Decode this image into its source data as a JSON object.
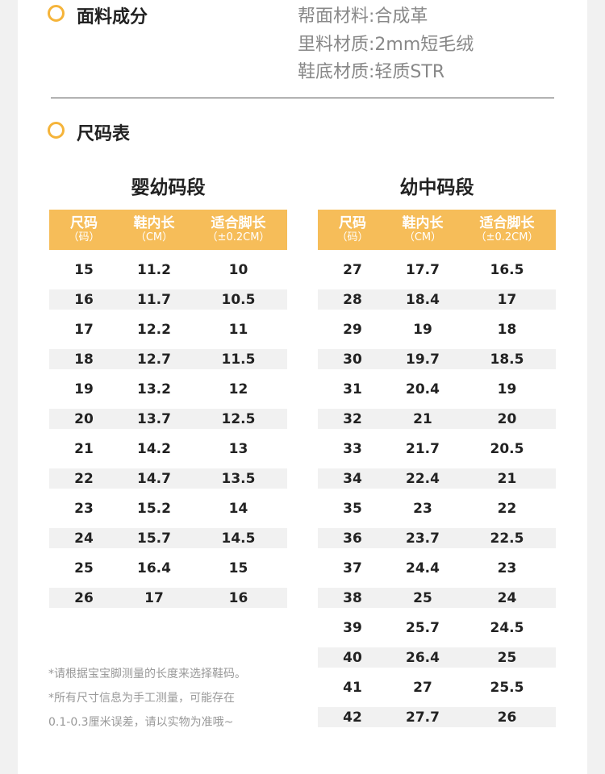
{
  "materials": {
    "heading": "面料成分",
    "lines": [
      "帮面材料:合成革",
      "里料材质:2mm短毛绒",
      "鞋底材质:轻质STR"
    ]
  },
  "size_chart": {
    "heading": "尺码表",
    "headers": [
      {
        "line1": "尺码",
        "line2": "（码）"
      },
      {
        "line1": "鞋内长",
        "line2": "（CM）"
      },
      {
        "line1": "适合脚长",
        "line2": "（±0.2CM）"
      }
    ],
    "infant": {
      "title": "婴幼码段",
      "rows": [
        [
          "15",
          "11.2",
          "10"
        ],
        [
          "16",
          "11.7",
          "10.5"
        ],
        [
          "17",
          "12.2",
          "11"
        ],
        [
          "18",
          "12.7",
          "11.5"
        ],
        [
          "19",
          "13.2",
          "12"
        ],
        [
          "20",
          "13.7",
          "12.5"
        ],
        [
          "21",
          "14.2",
          "13"
        ],
        [
          "22",
          "14.7",
          "13.5"
        ],
        [
          "23",
          "15.2",
          "14"
        ],
        [
          "24",
          "15.7",
          "14.5"
        ],
        [
          "25",
          "16.4",
          "15"
        ],
        [
          "26",
          "17",
          "16"
        ]
      ]
    },
    "kids": {
      "title": "幼中码段",
      "rows": [
        [
          "27",
          "17.7",
          "16.5"
        ],
        [
          "28",
          "18.4",
          "17"
        ],
        [
          "29",
          "19",
          "18"
        ],
        [
          "30",
          "19.7",
          "18.5"
        ],
        [
          "31",
          "20.4",
          "19"
        ],
        [
          "32",
          "21",
          "20"
        ],
        [
          "33",
          "21.7",
          "20.5"
        ],
        [
          "34",
          "22.4",
          "21"
        ],
        [
          "35",
          "23",
          "22"
        ],
        [
          "36",
          "23.7",
          "22.5"
        ],
        [
          "37",
          "24.4",
          "23"
        ],
        [
          "38",
          "25",
          "24"
        ],
        [
          "39",
          "25.7",
          "24.5"
        ],
        [
          "40",
          "26.4",
          "25"
        ],
        [
          "41",
          "27",
          "25.5"
        ],
        [
          "42",
          "27.7",
          "26"
        ]
      ]
    },
    "notes": [
      "*请根据宝宝脚测量的长度来选择鞋码。",
      "*所有尺寸信息为手工测量，可能存在",
      "0.1-0.3厘米误差，请以实物为准哦~"
    ]
  },
  "colors": {
    "accent": "#f6bd59",
    "ring": "#f5b43a",
    "stripe": "#f1f1f1"
  }
}
